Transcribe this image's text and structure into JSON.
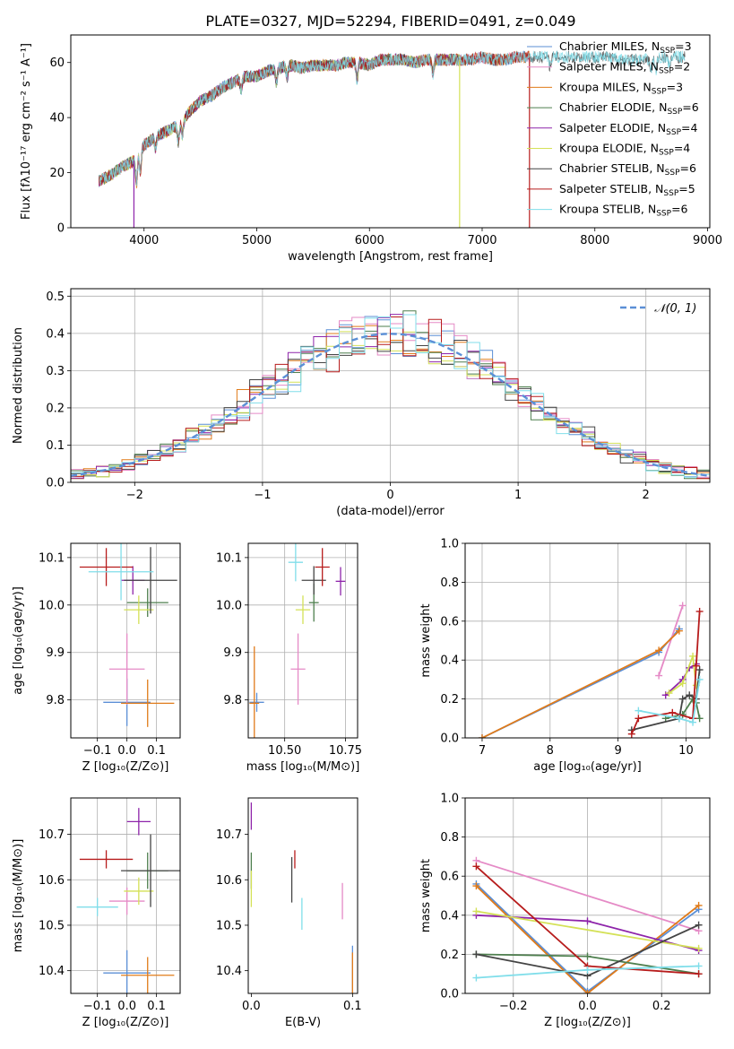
{
  "figure": {
    "title": "PLATE=0327, MJD=52294, FIBERID=0491, z=0.049"
  },
  "colors": {
    "Chabrier MILES": "#5b8fd6",
    "Salpeter MILES": "#e58ac6",
    "Kroupa MILES": "#e07b1a",
    "Chabrier ELODIE": "#4e7f4e",
    "Salpeter ELODIE": "#8e24aa",
    "Kroupa ELODIE": "#d4e157",
    "Chabrier STELIB": "#444444",
    "Salpeter STELIB": "#b71c1c",
    "Kroupa STELIB": "#80deea"
  },
  "chart_data": [
    {
      "id": "spectrum",
      "type": "line",
      "xlabel": "wavelength [Angstrom, rest frame]",
      "ylabel": "Flux [fλ10⁻¹⁷ erg cm⁻² s⁻¹ A⁻¹]",
      "xlim": [
        3350,
        9020
      ],
      "ylim": [
        0,
        70
      ],
      "xticks": [
        4000,
        5000,
        6000,
        7000,
        8000,
        9000
      ],
      "yticks": [
        0,
        20,
        40,
        60
      ],
      "grid": false,
      "legend_position": "top-right",
      "legend": [
        {
          "name": "Chabrier MILES",
          "label": "Chabrier MILES, N",
          "sub": "SSP",
          "tail": "=3"
        },
        {
          "name": "Salpeter MILES",
          "label": "Salpeter MILES, N",
          "sub": "SSP",
          "tail": "=2"
        },
        {
          "name": "Kroupa MILES",
          "label": "Kroupa MILES, N",
          "sub": "SSP",
          "tail": "=3"
        },
        {
          "name": "Chabrier ELODIE",
          "label": "Chabrier ELODIE, N",
          "sub": "SSP",
          "tail": "=6"
        },
        {
          "name": "Salpeter ELODIE",
          "label": "Salpeter ELODIE, N",
          "sub": "SSP",
          "tail": "=4"
        },
        {
          "name": "Kroupa ELODIE",
          "label": "Kroupa ELODIE, N",
          "sub": "SSP",
          "tail": "=4"
        },
        {
          "name": "Chabrier STELIB",
          "label": "Chabrier STELIB, N",
          "sub": "SSP",
          "tail": "=6"
        },
        {
          "name": "Salpeter STELIB",
          "label": "Salpeter STELIB, N",
          "sub": "SSP",
          "tail": "=5"
        },
        {
          "name": "Kroupa STELIB",
          "label": "Kroupa STELIB, N",
          "sub": "SSP",
          "tail": "=6"
        }
      ],
      "continuum": [
        [
          3600,
          17
        ],
        [
          3700,
          19
        ],
        [
          3800,
          22
        ],
        [
          3900,
          24
        ],
        [
          4000,
          30
        ],
        [
          4100,
          33
        ],
        [
          4200,
          35
        ],
        [
          4300,
          37
        ],
        [
          4400,
          42
        ],
        [
          4500,
          46
        ],
        [
          4600,
          48
        ],
        [
          4700,
          51
        ],
        [
          4800,
          53
        ],
        [
          4900,
          55
        ],
        [
          5000,
          55
        ],
        [
          5100,
          57
        ],
        [
          5200,
          58
        ],
        [
          5300,
          59
        ],
        [
          5400,
          58
        ],
        [
          5500,
          59
        ],
        [
          5600,
          59
        ],
        [
          5700,
          59
        ],
        [
          5800,
          60
        ],
        [
          5900,
          60
        ],
        [
          6000,
          59
        ],
        [
          6100,
          61
        ],
        [
          6200,
          61
        ],
        [
          6300,
          61
        ],
        [
          6400,
          60
        ],
        [
          6500,
          61
        ],
        [
          6600,
          61
        ],
        [
          6700,
          61
        ],
        [
          6800,
          61
        ],
        [
          6900,
          61
        ],
        [
          7000,
          62
        ],
        [
          7100,
          61
        ],
        [
          7200,
          61
        ],
        [
          7300,
          62
        ],
        [
          7400,
          62
        ],
        [
          7500,
          62
        ],
        [
          7600,
          62
        ],
        [
          7700,
          62
        ],
        [
          7800,
          62
        ],
        [
          7900,
          62
        ],
        [
          8000,
          62
        ],
        [
          8100,
          62
        ],
        [
          8200,
          61
        ],
        [
          8300,
          61
        ],
        [
          8400,
          61
        ],
        [
          8500,
          61
        ],
        [
          8600,
          62
        ],
        [
          8700,
          62
        ],
        [
          8800,
          62
        ]
      ],
      "absorption": [
        [
          3933,
          -10
        ],
        [
          3968,
          -8
        ],
        [
          4102,
          -4
        ],
        [
          4304,
          -6
        ],
        [
          4340,
          -5
        ],
        [
          4861,
          -4
        ],
        [
          5175,
          -5
        ],
        [
          5270,
          -4
        ],
        [
          5890,
          -6
        ],
        [
          6563,
          -5
        ],
        [
          7600,
          -3
        ],
        [
          8498,
          -4
        ],
        [
          8542,
          -5
        ],
        [
          8662,
          -4
        ]
      ],
      "spikes": [
        {
          "x": 3910,
          "drop": "Salpeter ELODIE"
        },
        {
          "x": 6800,
          "drop": "Kroupa ELODIE"
        },
        {
          "x": 7420,
          "drop": "Salpeter STELIB"
        }
      ],
      "spectrum_end": {
        "Chabrier MILES": 7420,
        "Salpeter MILES": 7420,
        "Kroupa MILES": 7420,
        "Chabrier STELIB": 8800,
        "Kroupa STELIB": 8800,
        "Chabrier ELODIE": 6800,
        "Salpeter ELODIE": 6800,
        "Kroupa ELODIE": 6800,
        "Salpeter STELIB": 7420
      }
    },
    {
      "id": "residuals",
      "type": "line",
      "xlabel": "(data-model)/error",
      "ylabel": "Normed distribution",
      "xlim": [
        -2.5,
        2.5
      ],
      "ylim": [
        0,
        0.52
      ],
      "xticks": [
        -2,
        -1,
        0,
        1,
        2
      ],
      "yticks": [
        0.0,
        0.1,
        0.2,
        0.3,
        0.4,
        0.5
      ],
      "grid": true,
      "legend_position": "top-right",
      "reference_label": "𝒩(0, 1)",
      "reference_color": "#5b8fd6",
      "bin_width": 0.1
    },
    {
      "id": "age-vs-z",
      "type": "scatter",
      "xlabel": "Z [log₁₀(Z/Z⊙)]",
      "ylabel": "age  [log₁₀(age/yr)]",
      "xlim": [
        -0.19,
        0.18
      ],
      "ylim": [
        9.72,
        10.13
      ],
      "xticks": [
        -0.1,
        0.0,
        0.1
      ],
      "yticks": [
        9.8,
        9.9,
        10.0,
        10.1
      ],
      "grid": true,
      "points": [
        {
          "series": "Chabrier MILES",
          "x": 0.0,
          "y": 9.795,
          "xerr": 0.08,
          "yerr": 0.05
        },
        {
          "series": "Salpeter MILES",
          "x": 0.0,
          "y": 9.865,
          "xerr": 0.06,
          "yerr": 0.075
        },
        {
          "series": "Kroupa MILES",
          "x": 0.07,
          "y": 9.793,
          "xerr": 0.09,
          "yerr": 0.05
        },
        {
          "series": "Chabrier ELODIE",
          "x": 0.07,
          "y": 10.005,
          "xerr": 0.07,
          "yerr": 0.03
        },
        {
          "series": "Salpeter ELODIE",
          "x": 0.02,
          "y": 10.052,
          "xerr": 0.04,
          "yerr": 0.03
        },
        {
          "series": "Kroupa ELODIE",
          "x": 0.04,
          "y": 9.99,
          "xerr": 0.05,
          "yerr": 0.03
        },
        {
          "series": "Chabrier STELIB",
          "x": 0.08,
          "y": 10.052,
          "xerr": 0.09,
          "yerr": 0.07
        },
        {
          "series": "Salpeter STELIB",
          "x": -0.07,
          "y": 10.08,
          "xerr": 0.09,
          "yerr": 0.04
        },
        {
          "series": "Kroupa STELIB",
          "x": -0.02,
          "y": 10.07,
          "xerr": 0.11,
          "yerr": 0.06
        }
      ]
    },
    {
      "id": "age-vs-mass",
      "type": "scatter",
      "xlabel": "mass [log₁₀(M/M⊙)]",
      "ylabel": "",
      "xlim": [
        10.35,
        10.8
      ],
      "ylim": [
        9.72,
        10.13
      ],
      "xticks": [
        10.5,
        10.75
      ],
      "yticks": [
        9.8,
        9.9,
        10.0,
        10.1
      ],
      "grid": true,
      "points": [
        {
          "series": "Chabrier MILES",
          "x": 10.385,
          "y": 9.795,
          "xerr": 0.03,
          "yerr": 0.02
        },
        {
          "series": "Salpeter MILES",
          "x": 10.555,
          "y": 9.865,
          "xerr": 0.03,
          "yerr": 0.075
        },
        {
          "series": "Kroupa MILES",
          "x": 10.375,
          "y": 9.793,
          "xerr": 0.02,
          "yerr": 0.12
        },
        {
          "series": "Chabrier ELODIE",
          "x": 10.62,
          "y": 10.005,
          "xerr": 0.02,
          "yerr": 0.04
        },
        {
          "series": "Salpeter ELODIE",
          "x": 10.73,
          "y": 10.05,
          "xerr": 0.02,
          "yerr": 0.03
        },
        {
          "series": "Kroupa ELODIE",
          "x": 10.575,
          "y": 9.99,
          "xerr": 0.03,
          "yerr": 0.03
        },
        {
          "series": "Chabrier STELIB",
          "x": 10.62,
          "y": 10.052,
          "xerr": 0.05,
          "yerr": 0.03
        },
        {
          "series": "Salpeter STELIB",
          "x": 10.655,
          "y": 10.08,
          "xerr": 0.03,
          "yerr": 0.04
        },
        {
          "series": "Kroupa STELIB",
          "x": 10.545,
          "y": 10.09,
          "xerr": 0.03,
          "yerr": 0.04
        }
      ]
    },
    {
      "id": "weight-vs-age",
      "type": "line",
      "xlabel": "age  [log₁₀(age/yr)]",
      "ylabel": "mass weight",
      "xlim": [
        6.75,
        10.35
      ],
      "ylim": [
        0,
        1
      ],
      "xticks": [
        7,
        8,
        9,
        10
      ],
      "yticks": [
        0.0,
        0.2,
        0.4,
        0.6,
        0.8,
        1.0
      ],
      "grid": true,
      "series": [
        {
          "name": "Chabrier MILES",
          "x": [
            7.0,
            9.6,
            9.9
          ],
          "y": [
            0.0,
            0.44,
            0.56
          ]
        },
        {
          "name": "Salpeter MILES",
          "x": [
            9.6,
            9.95
          ],
          "y": [
            0.32,
            0.68
          ]
        },
        {
          "name": "Kroupa MILES",
          "x": [
            7.0,
            9.6,
            9.9
          ],
          "y": [
            0.0,
            0.45,
            0.55
          ]
        },
        {
          "name": "Chabrier ELODIE",
          "x": [
            9.7,
            9.95,
            10.1,
            10.15,
            10.2
          ],
          "y": [
            0.1,
            0.12,
            0.2,
            0.18,
            0.1
          ]
        },
        {
          "name": "Salpeter ELODIE",
          "x": [
            9.7,
            9.95,
            10.05,
            10.15
          ],
          "y": [
            0.22,
            0.3,
            0.36,
            0.38
          ]
        },
        {
          "name": "Kroupa ELODIE",
          "x": [
            9.75,
            9.95,
            10.1,
            10.15
          ],
          "y": [
            0.23,
            0.28,
            0.42,
            0.27
          ]
        },
        {
          "name": "Chabrier STELIB",
          "x": [
            9.2,
            9.9,
            9.95,
            10.05,
            10.15,
            10.2
          ],
          "y": [
            0.04,
            0.1,
            0.2,
            0.22,
            0.2,
            0.35
          ]
        },
        {
          "name": "Salpeter STELIB",
          "x": [
            9.2,
            9.3,
            9.8,
            10.1,
            10.15,
            10.2
          ],
          "y": [
            0.02,
            0.1,
            0.13,
            0.1,
            0.37,
            0.65
          ]
        },
        {
          "name": "Kroupa STELIB",
          "x": [
            9.3,
            9.9,
            10.1,
            10.2
          ],
          "y": [
            0.14,
            0.1,
            0.08,
            0.3
          ]
        }
      ]
    },
    {
      "id": "mass-vs-z",
      "type": "scatter",
      "xlabel": "Z [log₁₀(Z/Z⊙)]",
      "ylabel": "mass [log₁₀(M/M⊙)]",
      "xlim": [
        -0.19,
        0.18
      ],
      "ylim": [
        10.35,
        10.78
      ],
      "xticks": [
        -0.1,
        0.0,
        0.1
      ],
      "yticks": [
        10.4,
        10.5,
        10.6,
        10.7
      ],
      "grid": true,
      "points": [
        {
          "series": "Chabrier MILES",
          "x": 0.0,
          "y": 10.395,
          "xerr": 0.08,
          "yerr": 0.05
        },
        {
          "series": "Salpeter MILES",
          "x": 0.0,
          "y": 10.553,
          "xerr": 0.06,
          "yerr": 0.03
        },
        {
          "series": "Kroupa MILES",
          "x": 0.07,
          "y": 10.39,
          "xerr": 0.09,
          "yerr": 0.04
        },
        {
          "series": "Chabrier ELODIE",
          "x": 0.07,
          "y": 10.62,
          "xerr": 0.07,
          "yerr": 0.04
        },
        {
          "series": "Salpeter ELODIE",
          "x": 0.04,
          "y": 10.728,
          "xerr": 0.04,
          "yerr": 0.03
        },
        {
          "series": "Kroupa ELODIE",
          "x": 0.04,
          "y": 10.575,
          "xerr": 0.05,
          "yerr": 0.03
        },
        {
          "series": "Chabrier STELIB",
          "x": 0.08,
          "y": 10.62,
          "xerr": 0.1,
          "yerr": 0.08
        },
        {
          "series": "Salpeter STELIB",
          "x": -0.07,
          "y": 10.645,
          "xerr": 0.09,
          "yerr": 0.02
        },
        {
          "series": "Kroupa STELIB",
          "x": -0.1,
          "y": 10.54,
          "xerr": 0.07,
          "yerr": 0.02
        }
      ]
    },
    {
      "id": "mass-vs-ebv",
      "type": "scatter",
      "xlabel": "E(B-V)",
      "ylabel": "",
      "xlim": [
        -0.003,
        0.105
      ],
      "ylim": [
        10.35,
        10.78
      ],
      "xticks": [
        0.0,
        0.1
      ],
      "yticks": [
        10.4,
        10.5,
        10.6,
        10.7
      ],
      "grid": false,
      "points": [
        {
          "series": "Chabrier MILES",
          "x": 0.1,
          "y": 10.395,
          "xerr": 0,
          "yerr": 0.06
        },
        {
          "series": "Salpeter MILES",
          "x": 0.09,
          "y": 10.553,
          "xerr": 0,
          "yerr": 0.04
        },
        {
          "series": "Kroupa MILES",
          "x": 0.1,
          "y": 10.39,
          "xerr": 0,
          "yerr": 0.05
        },
        {
          "series": "Chabrier ELODIE",
          "x": 0.0,
          "y": 10.62,
          "xerr": 0,
          "yerr": 0.04
        },
        {
          "series": "Salpeter ELODIE",
          "x": 0.0,
          "y": 10.74,
          "xerr": 0,
          "yerr": 0.03
        },
        {
          "series": "Kroupa ELODIE",
          "x": 0.0,
          "y": 10.58,
          "xerr": 0,
          "yerr": 0.04
        },
        {
          "series": "Chabrier STELIB",
          "x": 0.04,
          "y": 10.6,
          "xerr": 0,
          "yerr": 0.05
        },
        {
          "series": "Salpeter STELIB",
          "x": 0.043,
          "y": 10.645,
          "xerr": 0,
          "yerr": 0.02
        },
        {
          "series": "Kroupa STELIB",
          "x": 0.05,
          "y": 10.525,
          "xerr": 0,
          "yerr": 0.035
        }
      ]
    },
    {
      "id": "weight-vs-z",
      "type": "line",
      "xlabel": "Z [log₁₀(Z/Z⊙)]",
      "ylabel": "mass weight",
      "xlim": [
        -0.33,
        0.33
      ],
      "ylim": [
        0,
        1
      ],
      "xticks": [
        -0.2,
        0.0,
        0.2
      ],
      "yticks": [
        0.0,
        0.2,
        0.4,
        0.6,
        0.8,
        1.0
      ],
      "grid": true,
      "series": [
        {
          "name": "Chabrier MILES",
          "x": [
            -0.3,
            0.0,
            0.3
          ],
          "y": [
            0.56,
            0.01,
            0.43
          ]
        },
        {
          "name": "Salpeter MILES",
          "x": [
            -0.3,
            0.3
          ],
          "y": [
            0.68,
            0.32
          ]
        },
        {
          "name": "Kroupa MILES",
          "x": [
            -0.3,
            0.0,
            0.3
          ],
          "y": [
            0.55,
            0.0,
            0.45
          ]
        },
        {
          "name": "Chabrier ELODIE",
          "x": [
            -0.3,
            0.0,
            0.3
          ],
          "y": [
            0.2,
            0.19,
            0.1
          ]
        },
        {
          "name": "Salpeter ELODIE",
          "x": [
            -0.3,
            0.0,
            0.3
          ],
          "y": [
            0.4,
            0.37,
            0.22
          ]
        },
        {
          "name": "Kroupa ELODIE",
          "x": [
            -0.3,
            0.3
          ],
          "y": [
            0.42,
            0.23
          ]
        },
        {
          "name": "Chabrier STELIB",
          "x": [
            -0.3,
            0.0,
            0.3
          ],
          "y": [
            0.2,
            0.09,
            0.35
          ]
        },
        {
          "name": "Salpeter STELIB",
          "x": [
            -0.3,
            0.0,
            0.3
          ],
          "y": [
            0.65,
            0.14,
            0.1
          ]
        },
        {
          "name": "Kroupa STELIB",
          "x": [
            -0.3,
            0.0,
            0.3
          ],
          "y": [
            0.08,
            0.12,
            0.14
          ]
        }
      ]
    }
  ]
}
